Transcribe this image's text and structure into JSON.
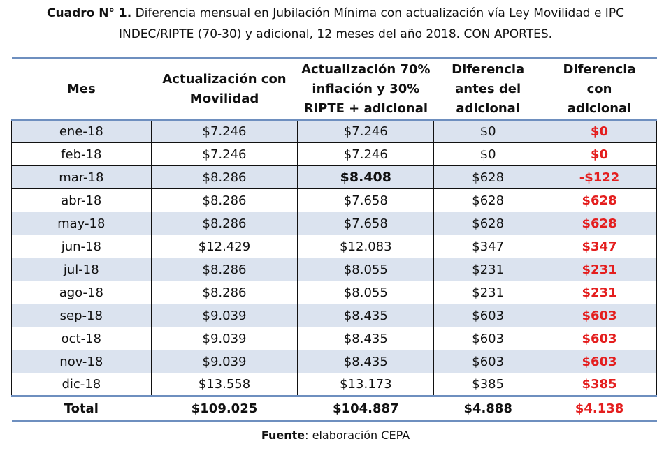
{
  "caption": {
    "bold": "Cuadro N° 1.",
    "line1": " Diferencia mensual en Jubilación Mínima con actualización vía Ley Movilidad e IPC",
    "line2": "INDEC/RIPTE (70-30) y adicional, 12 meses del año 2018. CON APORTES."
  },
  "headers": [
    [
      "Mes"
    ],
    [
      "Actualización con",
      "Movilidad"
    ],
    [
      "Actualización 70%",
      "inflación y 30%",
      "RIPTE + adicional"
    ],
    [
      "Diferencia",
      "antes del",
      "adicional"
    ],
    [
      "Diferencia",
      "con",
      "adicional"
    ]
  ],
  "rows": [
    [
      "ene-18",
      "$7.246",
      "$7.246",
      "$0",
      "$0"
    ],
    [
      "feb-18",
      "$7.246",
      "$7.246",
      "$0",
      "$0"
    ],
    [
      "mar-18",
      "$8.286",
      "$8.408",
      "$628",
      "-$122"
    ],
    [
      "abr-18",
      "$8.286",
      "$7.658",
      "$628",
      "$628"
    ],
    [
      "may-18",
      "$8.286",
      "$7.658",
      "$628",
      "$628"
    ],
    [
      "jun-18",
      "$12.429",
      "$12.083",
      "$347",
      "$347"
    ],
    [
      "jul-18",
      "$8.286",
      "$8.055",
      "$231",
      "$231"
    ],
    [
      "ago-18",
      "$8.286",
      "$8.055",
      "$231",
      "$231"
    ],
    [
      "sep-18",
      "$9.039",
      "$8.435",
      "$603",
      "$603"
    ],
    [
      "oct-18",
      "$9.039",
      "$8.435",
      "$603",
      "$603"
    ],
    [
      "nov-18",
      "$9.039",
      "$8.435",
      "$603",
      "$603"
    ],
    [
      "dic-18",
      "$13.558",
      "$13.173",
      "$385",
      "$385"
    ]
  ],
  "highlight": {
    "bold_row": 2,
    "bold_col": 2
  },
  "total": [
    "Total",
    "$109.025",
    "$104.887",
    "$4.888",
    "$4.138"
  ],
  "source": {
    "label": "Fuente",
    "text": ": elaboración CEPA"
  },
  "colors": {
    "shade": "#dbe3ef",
    "rule": "#6e8fbf",
    "red": "#e41e1e"
  }
}
